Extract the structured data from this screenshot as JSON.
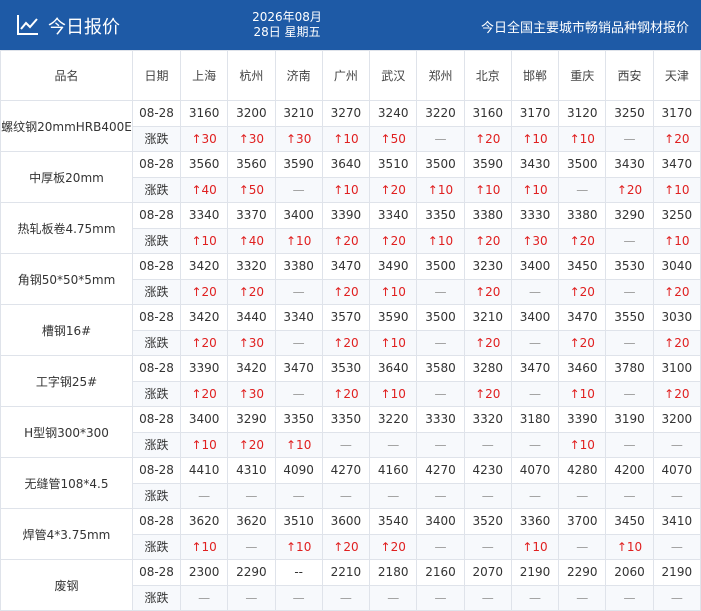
{
  "header": {
    "title": "今日报价",
    "date_line1": "2026年08月",
    "date_line2": "28日 星期五",
    "subtitle": "今日全国主要城市畅销品种钢材报价"
  },
  "table": {
    "columns": [
      "品名",
      "日期",
      "上海",
      "杭州",
      "济南",
      "广州",
      "武汉",
      "郑州",
      "北京",
      "邯郸",
      "重庆",
      "西安",
      "天津"
    ],
    "rows": [
      {
        "name": "螺纹钢20mmHRB400E",
        "date": "08-28",
        "change_label": "涨跌",
        "prices": [
          "3160",
          "3200",
          "3210",
          "3270",
          "3240",
          "3220",
          "3160",
          "3170",
          "3120",
          "3250",
          "3170"
        ],
        "changes": [
          "↑30",
          "↑30",
          "↑30",
          "↑10",
          "↑50",
          "—",
          "↑20",
          "↑10",
          "↑10",
          "—",
          "↑20"
        ]
      },
      {
        "name": "中厚板20mm",
        "date": "08-28",
        "change_label": "涨跌",
        "prices": [
          "3560",
          "3560",
          "3590",
          "3640",
          "3510",
          "3500",
          "3590",
          "3430",
          "3500",
          "3430",
          "3470"
        ],
        "changes": [
          "↑40",
          "↑50",
          "—",
          "↑10",
          "↑20",
          "↑10",
          "↑10",
          "↑10",
          "—",
          "↑20",
          "↑10"
        ]
      },
      {
        "name": "热轧板卷4.75mm",
        "date": "08-28",
        "change_label": "涨跌",
        "prices": [
          "3340",
          "3370",
          "3400",
          "3390",
          "3340",
          "3350",
          "3380",
          "3330",
          "3380",
          "3290",
          "3250"
        ],
        "changes": [
          "↑10",
          "↑40",
          "↑10",
          "↑20",
          "↑20",
          "↑10",
          "↑20",
          "↑30",
          "↑20",
          "—",
          "↑10"
        ]
      },
      {
        "name": "角钢50*50*5mm",
        "date": "08-28",
        "change_label": "涨跌",
        "prices": [
          "3420",
          "3320",
          "3380",
          "3470",
          "3490",
          "3500",
          "3230",
          "3400",
          "3450",
          "3530",
          "3040"
        ],
        "changes": [
          "↑20",
          "↑20",
          "—",
          "↑20",
          "↑10",
          "—",
          "↑20",
          "—",
          "↑20",
          "—",
          "↑20"
        ]
      },
      {
        "name": "槽钢16#",
        "date": "08-28",
        "change_label": "涨跌",
        "prices": [
          "3420",
          "3440",
          "3340",
          "3570",
          "3590",
          "3500",
          "3210",
          "3400",
          "3470",
          "3550",
          "3030"
        ],
        "changes": [
          "↑20",
          "↑30",
          "—",
          "↑20",
          "↑10",
          "—",
          "↑20",
          "—",
          "↑20",
          "—",
          "↑20"
        ]
      },
      {
        "name": "工字钢25#",
        "date": "08-28",
        "change_label": "涨跌",
        "prices": [
          "3390",
          "3420",
          "3470",
          "3530",
          "3640",
          "3580",
          "3280",
          "3470",
          "3460",
          "3780",
          "3100"
        ],
        "changes": [
          "↑20",
          "↑30",
          "—",
          "↑20",
          "↑10",
          "—",
          "↑20",
          "—",
          "↑10",
          "—",
          "↑20"
        ]
      },
      {
        "name": "H型钢300*300",
        "date": "08-28",
        "change_label": "涨跌",
        "prices": [
          "3400",
          "3290",
          "3350",
          "3350",
          "3220",
          "3330",
          "3320",
          "3180",
          "3390",
          "3190",
          "3200"
        ],
        "changes": [
          "↑10",
          "↑20",
          "↑10",
          "—",
          "—",
          "—",
          "—",
          "—",
          "↑10",
          "—",
          "—"
        ]
      },
      {
        "name": "无缝管108*4.5",
        "date": "08-28",
        "change_label": "涨跌",
        "prices": [
          "4410",
          "4310",
          "4090",
          "4270",
          "4160",
          "4270",
          "4230",
          "4070",
          "4280",
          "4200",
          "4070"
        ],
        "changes": [
          "—",
          "—",
          "—",
          "—",
          "—",
          "—",
          "—",
          "—",
          "—",
          "—",
          "—"
        ]
      },
      {
        "name": "焊管4*3.75mm",
        "date": "08-28",
        "change_label": "涨跌",
        "prices": [
          "3620",
          "3620",
          "3510",
          "3600",
          "3540",
          "3400",
          "3520",
          "3360",
          "3700",
          "3450",
          "3410"
        ],
        "changes": [
          "↑10",
          "—",
          "↑10",
          "↑20",
          "↑20",
          "—",
          "—",
          "↑10",
          "—",
          "↑10",
          "—"
        ]
      },
      {
        "name": "废钢",
        "date": "08-28",
        "change_label": "涨跌",
        "prices": [
          "2300",
          "2290",
          "--",
          "2210",
          "2180",
          "2160",
          "2070",
          "2190",
          "2290",
          "2060",
          "2190"
        ],
        "changes": [
          "—",
          "—",
          "—",
          "—",
          "—",
          "—",
          "—",
          "—",
          "—",
          "—",
          "—"
        ]
      }
    ]
  }
}
